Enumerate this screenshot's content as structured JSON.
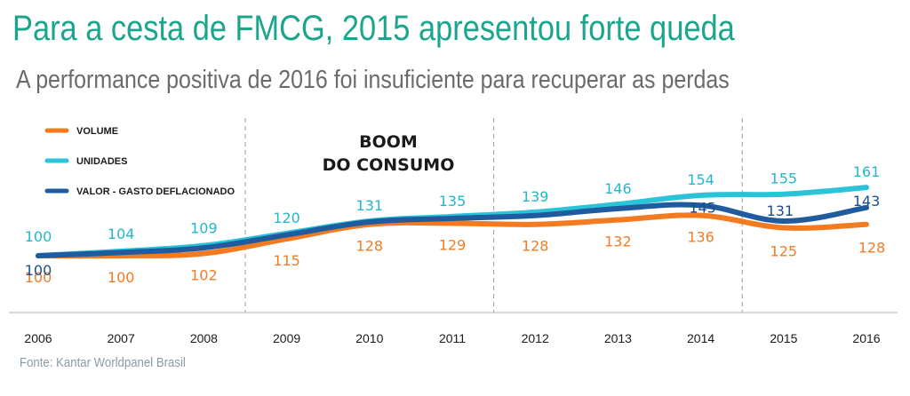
{
  "title": "Para a cesta de FMCG, 2015 apresentou forte queda",
  "subtitle": "A performance positiva de 2016 foi insuficiente para recuperar as perdas",
  "source": "Fonte: Kantar Worldpanel Brasil",
  "annotation": [
    "BOOM",
    "DO CONSUMO"
  ],
  "chart_data": {
    "type": "line",
    "x": [
      "2006",
      "2007",
      "2008",
      "2009",
      "2010",
      "2011",
      "2012",
      "2013",
      "2014",
      "2015",
      "2016"
    ],
    "series": [
      {
        "name": "VOLUME",
        "color": "#f47a20",
        "values": [
          100,
          100,
          102,
          115,
          128,
          129,
          128,
          132,
          136,
          125,
          128
        ]
      },
      {
        "name": "UNIDADES",
        "color": "#2bc3d8",
        "values": [
          100,
          104,
          109,
          120,
          131,
          135,
          139,
          146,
          154,
          155,
          161
        ]
      },
      {
        "name": "VALOR - GASTO DEFLACIONADO",
        "color": "#1f5b9e",
        "values": [
          100,
          null,
          null,
          null,
          null,
          null,
          null,
          null,
          145,
          131,
          143
        ]
      }
    ],
    "dividers_after": [
      "2008",
      "2011",
      "2014"
    ],
    "legend_position": "top-left",
    "grid": false
  }
}
